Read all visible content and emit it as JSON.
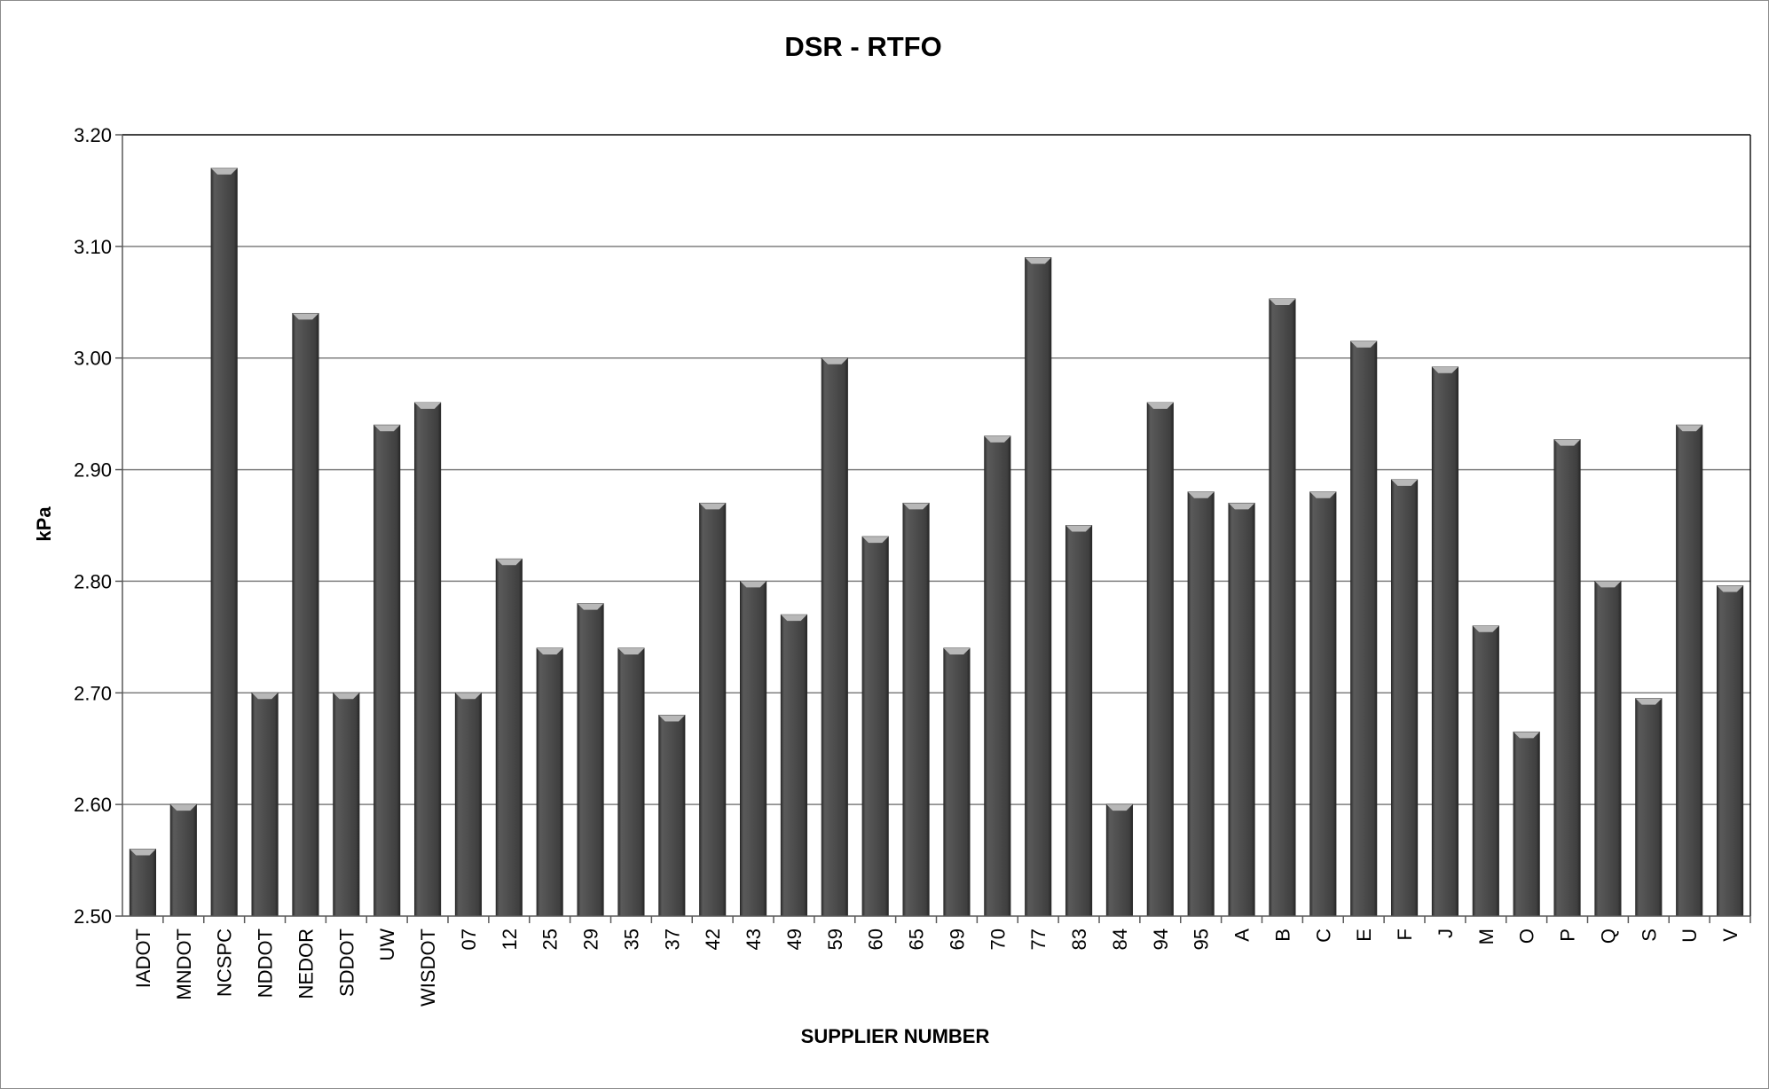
{
  "chart_data": {
    "type": "bar",
    "title": "DSR - RTFO",
    "xlabel": "SUPPLIER NUMBER",
    "ylabel": "kPa",
    "ylim": [
      2.5,
      3.2
    ],
    "ytick_step": 0.1,
    "ytick_labels": [
      "2.50",
      "2.60",
      "2.70",
      "2.80",
      "2.90",
      "3.00",
      "3.10",
      "3.20"
    ],
    "grid": true,
    "legend": "none",
    "bar_color": "#4d4d4d",
    "bar_highlight": "#b8b8b8",
    "gridline_color": "#7f7f7f",
    "categories": [
      "IADOT",
      "MNDOT",
      "NCSPC",
      "NDDOT",
      "NEDOR",
      "SDDOT",
      "UW",
      "WISDOT",
      "07",
      "12",
      "25",
      "29",
      "35",
      "37",
      "42",
      "43",
      "49",
      "59",
      "60",
      "65",
      "69",
      "70",
      "77",
      "83",
      "84",
      "94",
      "95",
      "A",
      "B",
      "C",
      "E",
      "F",
      "J",
      "M",
      "O",
      "P",
      "Q",
      "S",
      "U",
      "V"
    ],
    "values": [
      2.56,
      2.6,
      3.17,
      2.7,
      3.04,
      2.7,
      2.94,
      2.96,
      2.7,
      2.82,
      2.74,
      2.78,
      2.74,
      2.68,
      2.87,
      2.8,
      2.77,
      3.0,
      2.84,
      2.87,
      2.74,
      2.93,
      3.09,
      2.85,
      2.6,
      2.96,
      2.88,
      2.87,
      3.053,
      2.88,
      3.015,
      2.891,
      2.992,
      2.76,
      2.665,
      2.927,
      2.8,
      2.695,
      2.94,
      2.796
    ]
  }
}
